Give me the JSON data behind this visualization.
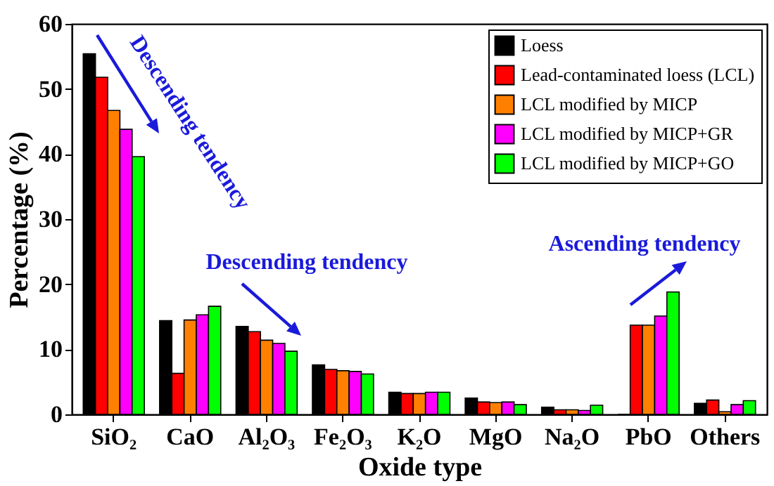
{
  "chart_data": {
    "type": "bar",
    "xlabel": "Oxide type",
    "ylabel": "Percentage (%)",
    "categories": [
      "SiO₂",
      "CaO",
      "Al₂O₃",
      "Fe₂O₃",
      "K₂O",
      "MgO",
      "Na₂O",
      "PbO",
      "Others"
    ],
    "series": [
      {
        "name": "Loess",
        "color": "#000000",
        "values": [
          55.4,
          14.4,
          13.5,
          7.6,
          3.4,
          2.5,
          1.1,
          0,
          1.7
        ]
      },
      {
        "name": "Lead-contaminated loess (LCL)",
        "color": "#ff0000",
        "values": [
          51.8,
          6.3,
          12.7,
          6.9,
          3.2,
          1.9,
          0.7,
          13.7,
          2.2
        ]
      },
      {
        "name": "LCL modified by MICP",
        "color": "#ff8000",
        "values": [
          46.7,
          14.5,
          11.4,
          6.7,
          3.2,
          1.8,
          0.7,
          13.7,
          0.4
        ]
      },
      {
        "name": "LCL modified by MICP+GR",
        "color": "#ff00ff",
        "values": [
          43.8,
          15.3,
          10.9,
          6.6,
          3.4,
          1.9,
          0.6,
          15.1,
          1.5
        ]
      },
      {
        "name": "LCL modified by MICP+GO",
        "color": "#00ff00",
        "values": [
          39.6,
          16.6,
          9.7,
          6.2,
          3.4,
          1.5,
          1.4,
          18.8,
          2.1
        ]
      }
    ],
    "ylim": [
      0,
      60
    ],
    "yticks": [
      0,
      10,
      20,
      30,
      40,
      50,
      60
    ],
    "grid": false,
    "legend": "top right",
    "annotations": [
      "Descending tendency",
      "Descending tendency",
      "Ascending tendency"
    ]
  }
}
